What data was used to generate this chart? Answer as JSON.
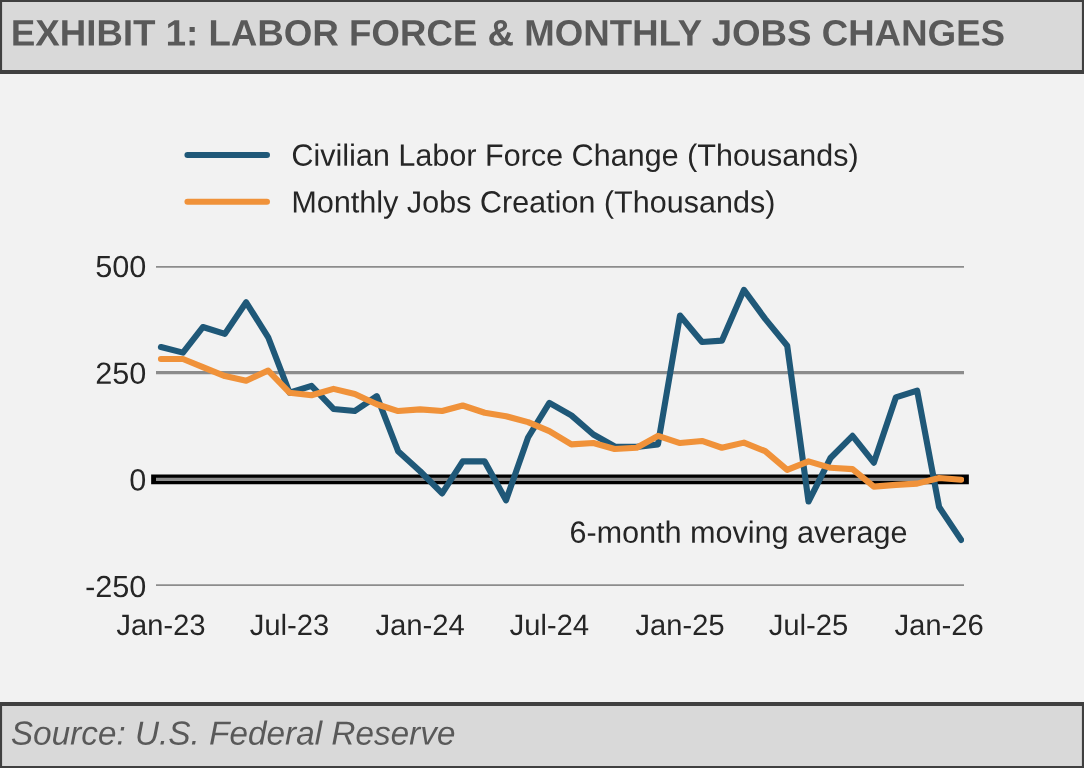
{
  "chart_data": {
    "type": "line",
    "title": "EXHIBIT 1: LABOR FORCE & MONTHLY JOBS CHANGES",
    "x": [
      "2023-01",
      "2023-02",
      "2023-03",
      "2023-04",
      "2023-05",
      "2023-06",
      "2023-07",
      "2023-08",
      "2023-09",
      "2023-10",
      "2023-11",
      "2023-12",
      "2024-01",
      "2024-02",
      "2024-03",
      "2024-04",
      "2024-05",
      "2024-06",
      "2024-07",
      "2024-08",
      "2024-09",
      "2024-10",
      "2024-11",
      "2024-12",
      "2025-01",
      "2025-02",
      "2025-03",
      "2025-04",
      "2025-05",
      "2025-06",
      "2025-07",
      "2025-08",
      "2025-09",
      "2025-10",
      "2025-11",
      "2025-12",
      "2026-01",
      "2026-02"
    ],
    "series": [
      {
        "name": "Civilian Labor Force Change (Thousands)",
        "color": "#1f5878",
        "values": [
          310,
          297,
          357,
          341,
          415,
          333,
          203,
          219,
          165,
          160,
          195,
          66,
          19,
          -33,
          42,
          42,
          -49,
          98,
          179,
          150,
          105,
          77,
          76,
          82,
          384,
          322,
          325,
          444,
          376,
          313,
          -52,
          50,
          102,
          39,
          192,
          208,
          -65,
          -142
        ]
      },
      {
        "name": "Monthly Jobs Creation (Thousands)",
        "color": "#f0923a",
        "values": [
          282,
          282,
          263,
          242,
          231,
          255,
          203,
          197,
          212,
          200,
          176,
          160,
          164,
          160,
          173,
          156,
          148,
          134,
          113,
          82,
          85,
          71,
          74,
          102,
          85,
          90,
          74,
          86,
          66,
          22,
          42,
          27,
          24,
          -17,
          -13,
          -10,
          3,
          -1
        ]
      }
    ],
    "xlim": [
      "2022-12-25",
      "2026-02-05"
    ],
    "xticks": [
      {
        "value": "2023-01",
        "label": "Jan-23"
      },
      {
        "value": "2023-07",
        "label": "Jul-23"
      },
      {
        "value": "2024-01",
        "label": "Jan-24"
      },
      {
        "value": "2024-07",
        "label": "Jul-24"
      },
      {
        "value": "2025-01",
        "label": "Jan-25"
      },
      {
        "value": "2025-07",
        "label": "Jul-25"
      },
      {
        "value": "2026-01",
        "label": "Jan-26"
      }
    ],
    "ylim": [
      -250,
      500
    ],
    "yticks": [
      -250,
      0,
      250,
      500
    ],
    "grid": "y",
    "legend": "top",
    "annotations": [
      "6-month moving average",
      "Source: U.S. Federal Reserve"
    ]
  }
}
